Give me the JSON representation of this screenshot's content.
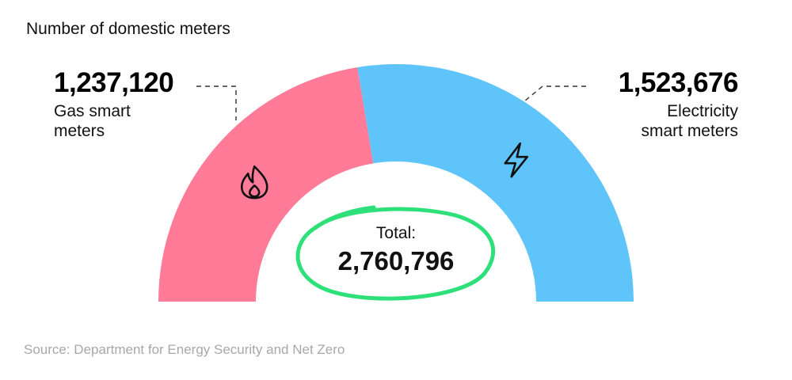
{
  "chart_data": {
    "type": "pie",
    "variant": "half-donut",
    "title": "Number of domestic meters",
    "series": [
      {
        "name": "Gas smart meters",
        "value": 1237120,
        "display": "1,237,120",
        "label_lines": [
          "Gas smart",
          "meters"
        ],
        "color": "#FF7B98",
        "icon": "flame-icon"
      },
      {
        "name": "Electricity smart meters",
        "value": 1523676,
        "display": "1,523,676",
        "label_lines": [
          "Electricity",
          "smart meters"
        ],
        "color": "#5EC4FA",
        "icon": "lightning-icon"
      }
    ],
    "total": {
      "label": "Total:",
      "value": 2760796,
      "display": "2,760,796",
      "highlight_color": "#2EE07A"
    },
    "source": "Source: Department for Energy Security and Net Zero"
  }
}
